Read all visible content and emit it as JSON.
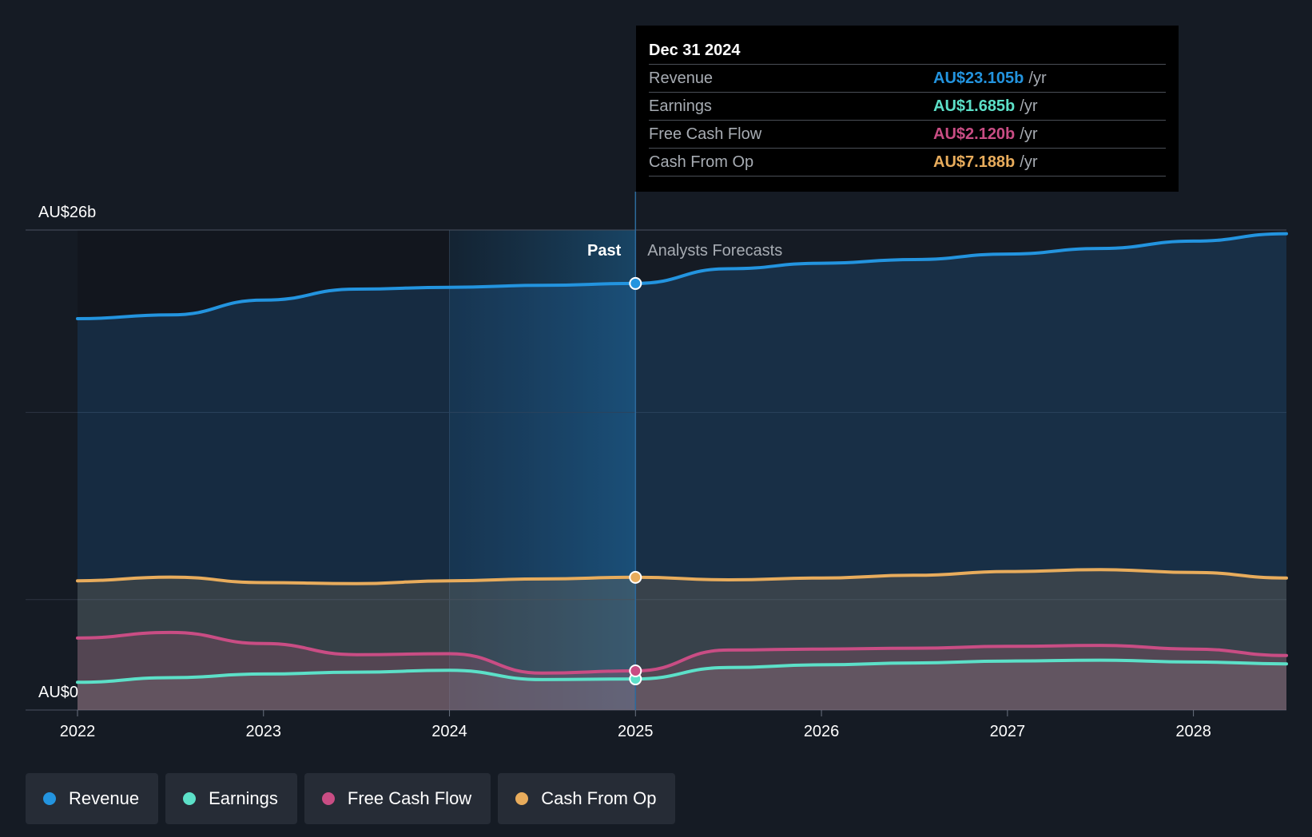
{
  "chart_data": {
    "type": "area",
    "title": "",
    "y_unit": "AU$ billions",
    "ylim": [
      0,
      26
    ],
    "y_tick_labels": {
      "max": "AU$26b",
      "min": "AU$0"
    },
    "x_ticks": [
      2022,
      2023,
      2024,
      2025,
      2026,
      2027,
      2028
    ],
    "xlim": [
      2022,
      2028.5
    ],
    "divider_x": 2025,
    "past_label": "Past",
    "forecast_label": "Analysts Forecasts",
    "past_shaded_from": 2024,
    "series": [
      {
        "name": "Revenue",
        "color": "#2394df",
        "points": [
          [
            2022,
            21.2
          ],
          [
            2022.5,
            21.4
          ],
          [
            2023,
            22.2
          ],
          [
            2023.5,
            22.8
          ],
          [
            2024,
            22.9
          ],
          [
            2024.5,
            23.0
          ],
          [
            2025,
            23.105
          ],
          [
            2025.5,
            23.9
          ],
          [
            2026,
            24.2
          ],
          [
            2026.5,
            24.4
          ],
          [
            2027,
            24.7
          ],
          [
            2027.5,
            25.0
          ],
          [
            2028,
            25.4
          ],
          [
            2028.5,
            25.8
          ]
        ]
      },
      {
        "name": "Earnings",
        "color": "#5ce0c8",
        "points": [
          [
            2022,
            1.5
          ],
          [
            2022.5,
            1.75
          ],
          [
            2023,
            1.95
          ],
          [
            2023.5,
            2.05
          ],
          [
            2024,
            2.15
          ],
          [
            2024.5,
            1.65
          ],
          [
            2025,
            1.685
          ],
          [
            2025.5,
            2.3
          ],
          [
            2026,
            2.45
          ],
          [
            2026.5,
            2.55
          ],
          [
            2027,
            2.65
          ],
          [
            2027.5,
            2.7
          ],
          [
            2028,
            2.6
          ],
          [
            2028.5,
            2.5
          ]
        ]
      },
      {
        "name": "Free Cash Flow",
        "color": "#c94d84",
        "points": [
          [
            2022,
            3.9
          ],
          [
            2022.5,
            4.2
          ],
          [
            2023,
            3.6
          ],
          [
            2023.5,
            3.0
          ],
          [
            2024,
            3.05
          ],
          [
            2024.5,
            2.0
          ],
          [
            2025,
            2.12
          ],
          [
            2025.5,
            3.25
          ],
          [
            2026,
            3.3
          ],
          [
            2026.5,
            3.35
          ],
          [
            2027,
            3.45
          ],
          [
            2027.5,
            3.5
          ],
          [
            2028,
            3.3
          ],
          [
            2028.5,
            2.95
          ]
        ]
      },
      {
        "name": "Cash From Op",
        "color": "#e8ac5c",
        "points": [
          [
            2022,
            7.0
          ],
          [
            2022.5,
            7.2
          ],
          [
            2023,
            6.9
          ],
          [
            2023.5,
            6.85
          ],
          [
            2024,
            7.0
          ],
          [
            2024.5,
            7.1
          ],
          [
            2025,
            7.188
          ],
          [
            2025.5,
            7.05
          ],
          [
            2026,
            7.15
          ],
          [
            2026.5,
            7.3
          ],
          [
            2027,
            7.5
          ],
          [
            2027.5,
            7.6
          ],
          [
            2028,
            7.45
          ],
          [
            2028.5,
            7.15
          ]
        ]
      }
    ],
    "tooltip": {
      "date": "Dec 31 2024",
      "rows": [
        {
          "label": "Revenue",
          "value": "AU$23.105b",
          "unit": "/yr",
          "color": "#2394df"
        },
        {
          "label": "Earnings",
          "value": "AU$1.685b",
          "unit": "/yr",
          "color": "#5ce0c8"
        },
        {
          "label": "Free Cash Flow",
          "value": "AU$2.120b",
          "unit": "/yr",
          "color": "#c94d84"
        },
        {
          "label": "Cash From Op",
          "value": "AU$7.188b",
          "unit": "/yr",
          "color": "#e8ac5c"
        }
      ]
    }
  },
  "legend": [
    {
      "label": "Revenue",
      "color": "#2394df"
    },
    {
      "label": "Earnings",
      "color": "#5ce0c8"
    },
    {
      "label": "Free Cash Flow",
      "color": "#c94d84"
    },
    {
      "label": "Cash From Op",
      "color": "#e8ac5c"
    }
  ]
}
